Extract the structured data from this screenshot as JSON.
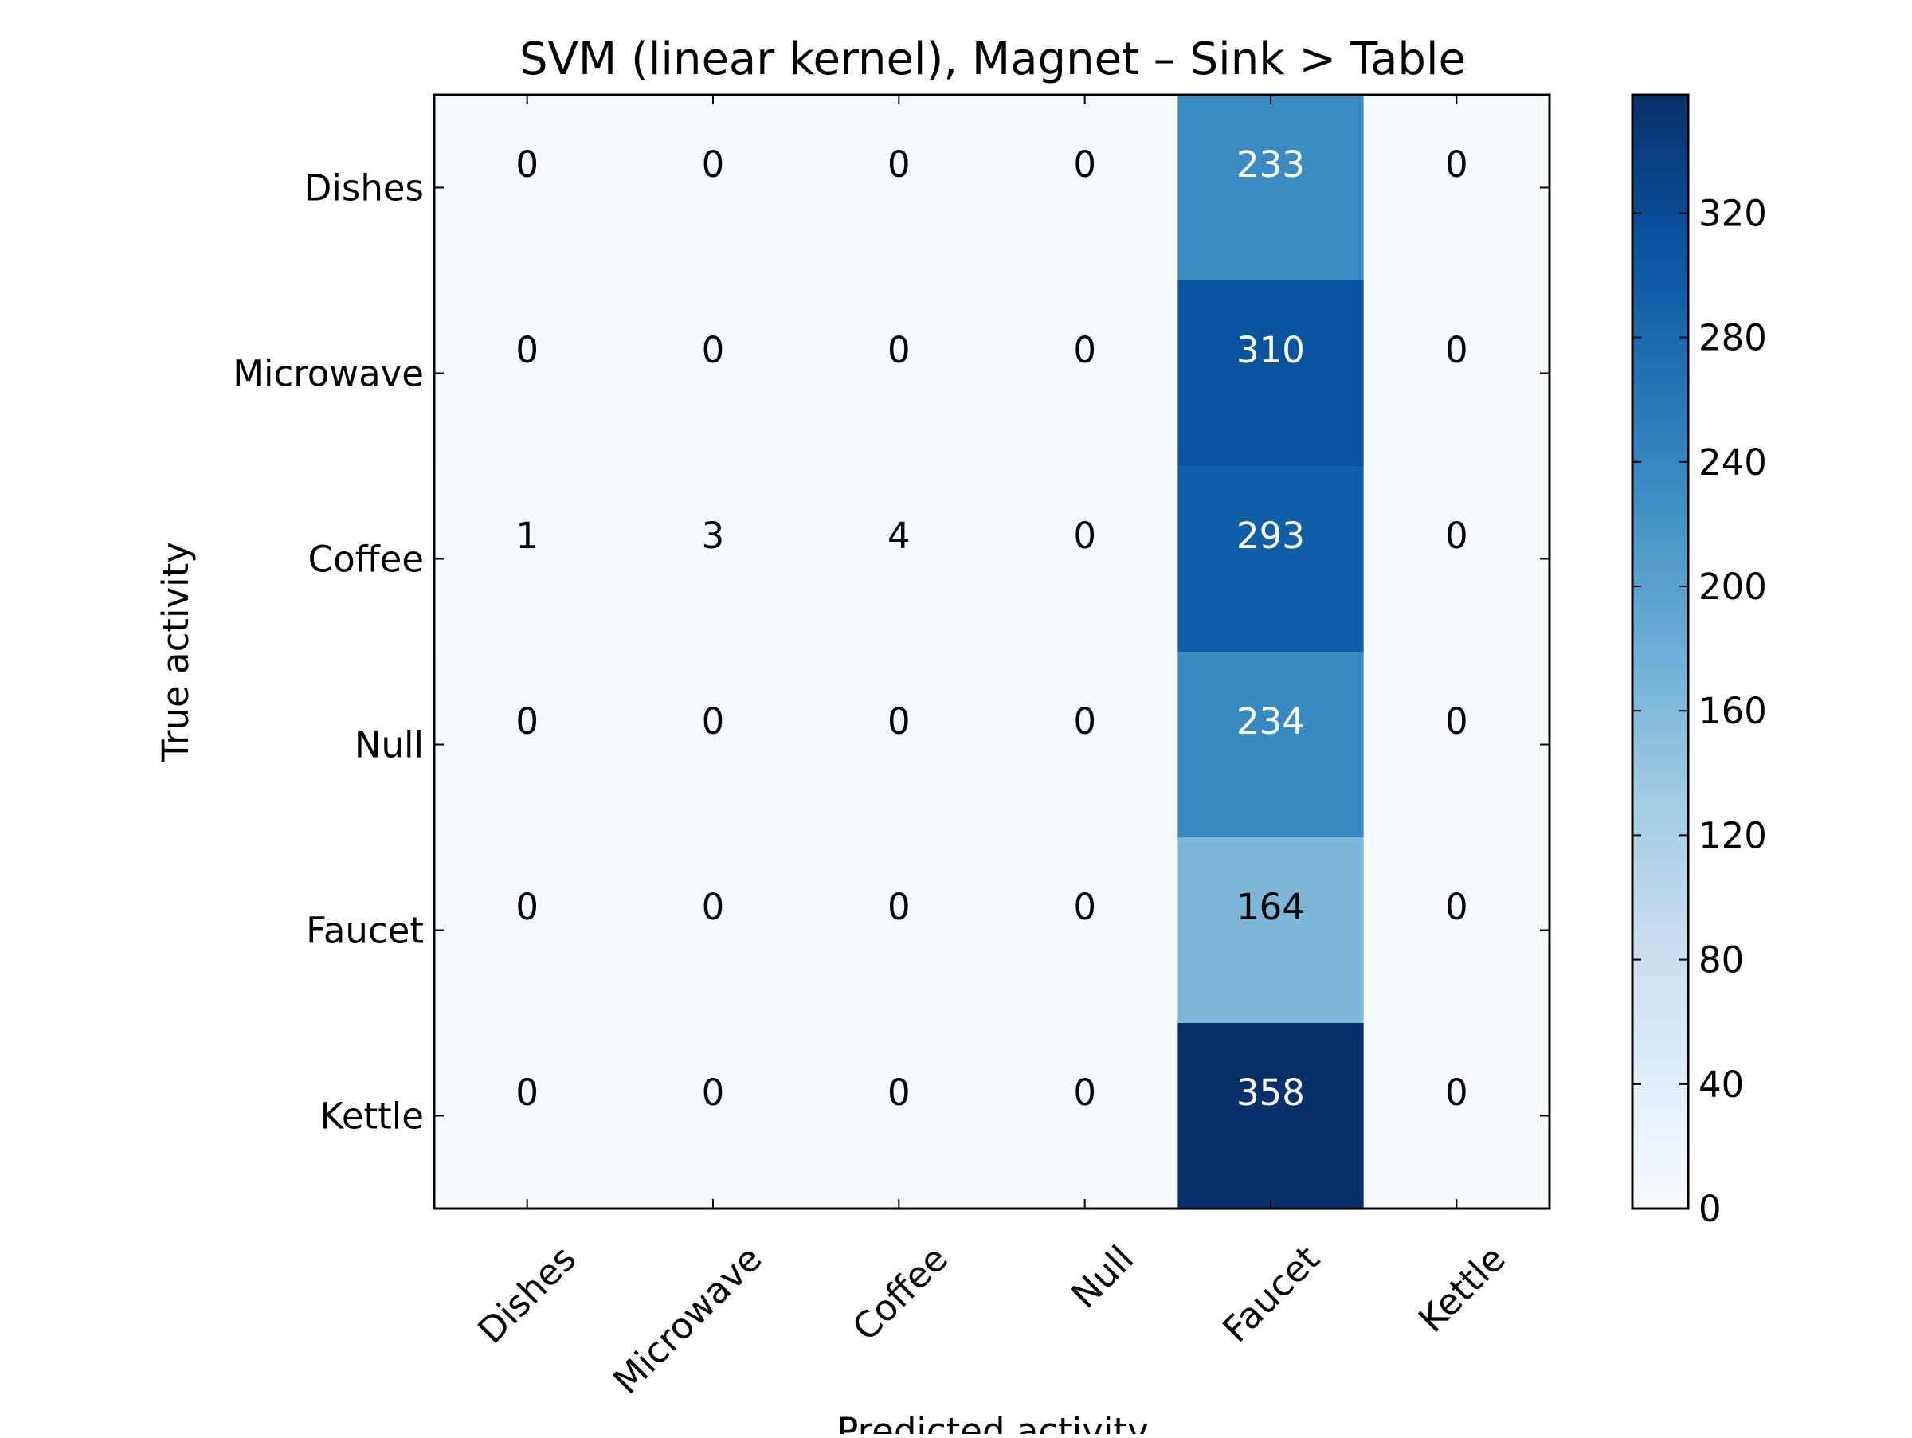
{
  "chart_data": {
    "type": "heatmap",
    "title": "SVM (linear kernel), Magnet – Sink > Table",
    "xlabel": "Predicted activity",
    "ylabel": "True activity",
    "x_categories": [
      "Dishes",
      "Microwave",
      "Coffee",
      "Null",
      "Faucet",
      "Kettle"
    ],
    "y_categories": [
      "Dishes",
      "Microwave",
      "Coffee",
      "Null",
      "Faucet",
      "Kettle"
    ],
    "values": [
      [
        0,
        0,
        0,
        0,
        233,
        0
      ],
      [
        0,
        0,
        0,
        0,
        310,
        0
      ],
      [
        1,
        3,
        4,
        0,
        293,
        0
      ],
      [
        0,
        0,
        0,
        0,
        234,
        0
      ],
      [
        0,
        0,
        0,
        0,
        164,
        0
      ],
      [
        0,
        0,
        0,
        0,
        358,
        0
      ]
    ],
    "colormap": "Blues",
    "colorbar": {
      "range": [
        0,
        358
      ],
      "ticks": [
        0,
        40,
        80,
        120,
        160,
        200,
        240,
        280,
        320
      ]
    },
    "grid": false
  }
}
